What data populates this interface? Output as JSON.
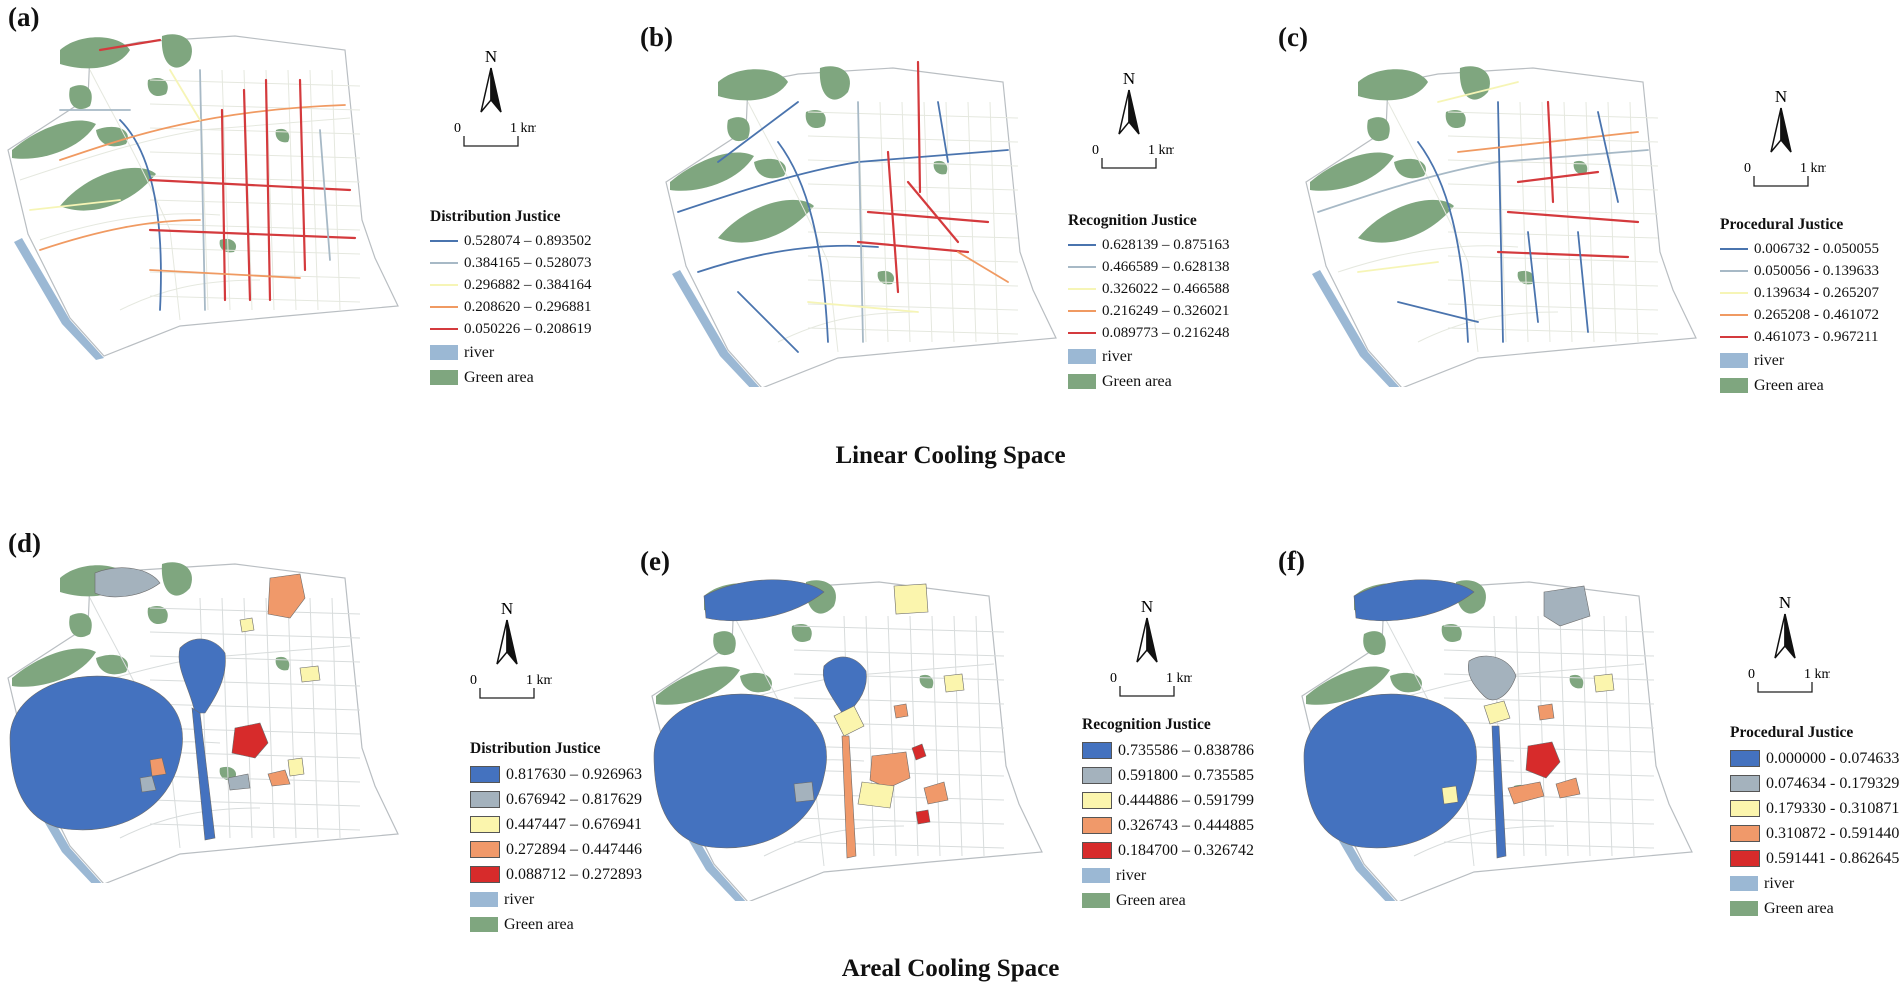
{
  "colors": {
    "river": "#9bb8d4",
    "green": "#7fa67f",
    "road_base": "#d8dcdc",
    "lake_dark": "#3e6db5",
    "lin": [
      "#4a74ae",
      "#a7b9c6",
      "#f6f5b6",
      "#f09a62",
      "#d43a3d"
    ],
    "area": [
      "#4472bf",
      "#a4b2bd",
      "#fbf5ad",
      "#f0996a",
      "#d72b2b"
    ]
  },
  "compass": {
    "north": "N",
    "scale_start": "0",
    "scale_end": "1 km"
  },
  "legend_common": {
    "river": "river",
    "green": "Green area"
  },
  "sections": {
    "linear": "Linear Cooling Space",
    "areal": "Areal Cooling Space"
  },
  "panels": [
    {
      "label": "(a)",
      "kind": "linear",
      "legend_title": "Distribution Justice",
      "classes": [
        "0.528074 – 0.893502",
        "0.384165 – 0.528073",
        "0.296882 – 0.384164",
        "0.208620 – 0.296881",
        "0.050226 – 0.208619"
      ]
    },
    {
      "label": "(b)",
      "kind": "linear",
      "legend_title": "Recognition Justice",
      "classes": [
        "0.628139 – 0.875163",
        "0.466589 – 0.628138",
        "0.326022 – 0.466588",
        "0.216249 – 0.326021",
        "0.089773 – 0.216248"
      ]
    },
    {
      "label": "(c)",
      "kind": "linear",
      "legend_title": "Procedural Justice",
      "classes": [
        "0.006732 - 0.050055",
        "0.050056 - 0.139633",
        "0.139634 - 0.265207",
        "0.265208 - 0.461072",
        "0.461073 - 0.967211"
      ]
    },
    {
      "label": "(d)",
      "kind": "areal",
      "legend_title": "Distribution Justice",
      "classes": [
        "0.817630 – 0.926963",
        "0.676942 – 0.817629",
        "0.447447 – 0.676941",
        "0.272894 – 0.447446",
        "0.088712 – 0.272893"
      ]
    },
    {
      "label": "(e)",
      "kind": "areal",
      "legend_title": "Recognition Justice",
      "classes": [
        "0.735586 – 0.838786",
        "0.591800 – 0.735585",
        "0.444886 – 0.591799",
        "0.326743 – 0.444885",
        "0.184700 – 0.326742"
      ]
    },
    {
      "label": "(f)",
      "kind": "areal",
      "legend_title": "Procedural Justice",
      "classes": [
        "0.000000 - 0.074633",
        "0.074634 - 0.179329",
        "0.179330 - 0.310871",
        "0.310872 - 0.591440",
        "0.591441 - 0.862645"
      ]
    }
  ]
}
